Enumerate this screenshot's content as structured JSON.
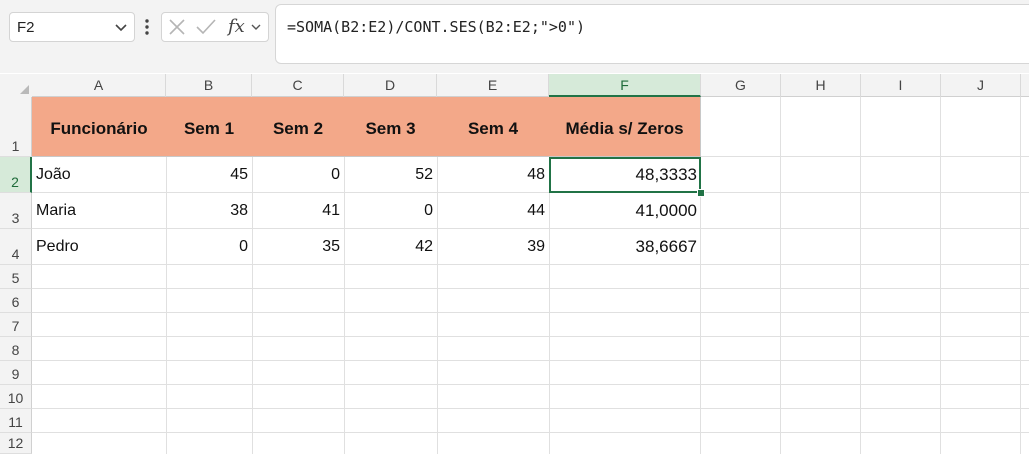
{
  "name_box": {
    "value": "F2"
  },
  "formula_bar": {
    "fx_label": "fx",
    "formula": "=SOMA(B2:E2)/CONT.SES(B2:E2;\">0\")"
  },
  "columns": [
    "A",
    "B",
    "C",
    "D",
    "E",
    "F",
    "G",
    "H",
    "I",
    "J"
  ],
  "rows": [
    "1",
    "2",
    "3",
    "4",
    "5",
    "6",
    "7",
    "8",
    "9",
    "10",
    "11",
    "12"
  ],
  "table": {
    "headers": [
      "Funcionário",
      "Sem 1",
      "Sem 2",
      "Sem 3",
      "Sem 4",
      "Média s/ Zeros"
    ],
    "header_color": "#f3a889",
    "data": [
      [
        "João",
        "45",
        "0",
        "52",
        "48",
        "48,3333"
      ],
      [
        "Maria",
        "38",
        "41",
        "0",
        "44",
        "41,0000"
      ],
      [
        "Pedro",
        "0",
        "35",
        "42",
        "39",
        "38,6667"
      ]
    ]
  },
  "selection": {
    "cell": "F2",
    "accent_color": "#217346"
  }
}
